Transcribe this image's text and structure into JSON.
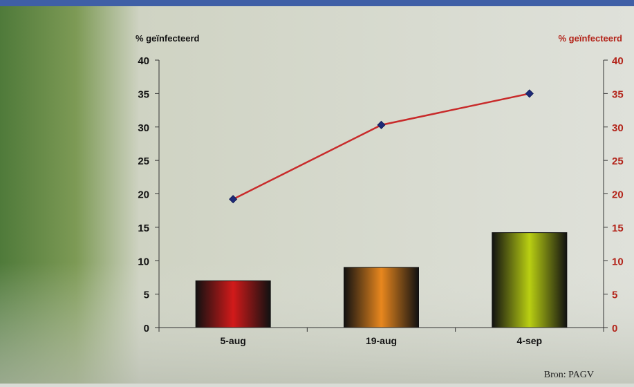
{
  "chart_data": {
    "type": "bar",
    "categories": [
      "5-aug",
      "19-aug",
      "4-sep"
    ],
    "series": [
      {
        "type": "bar",
        "values": [
          7,
          9,
          14.2
        ],
        "colors": [
          "#d21a1a",
          "#e8871e",
          "#b9cf12"
        ]
      },
      {
        "type": "line",
        "values": [
          19.2,
          30.3,
          35
        ],
        "color": "#c82a2a",
        "marker_color": "#1d2a78"
      }
    ],
    "ylabel_left": "% geïnfecteerd",
    "ylabel_right": "% geïnfecteerd",
    "ylim": [
      0,
      40
    ],
    "yticks": [
      0,
      5,
      10,
      15,
      20,
      25,
      30,
      35,
      40
    ],
    "grid": false,
    "axis_colors": {
      "left": "#111111",
      "right": "#b3241a"
    }
  },
  "source": "Bron: PAGV"
}
